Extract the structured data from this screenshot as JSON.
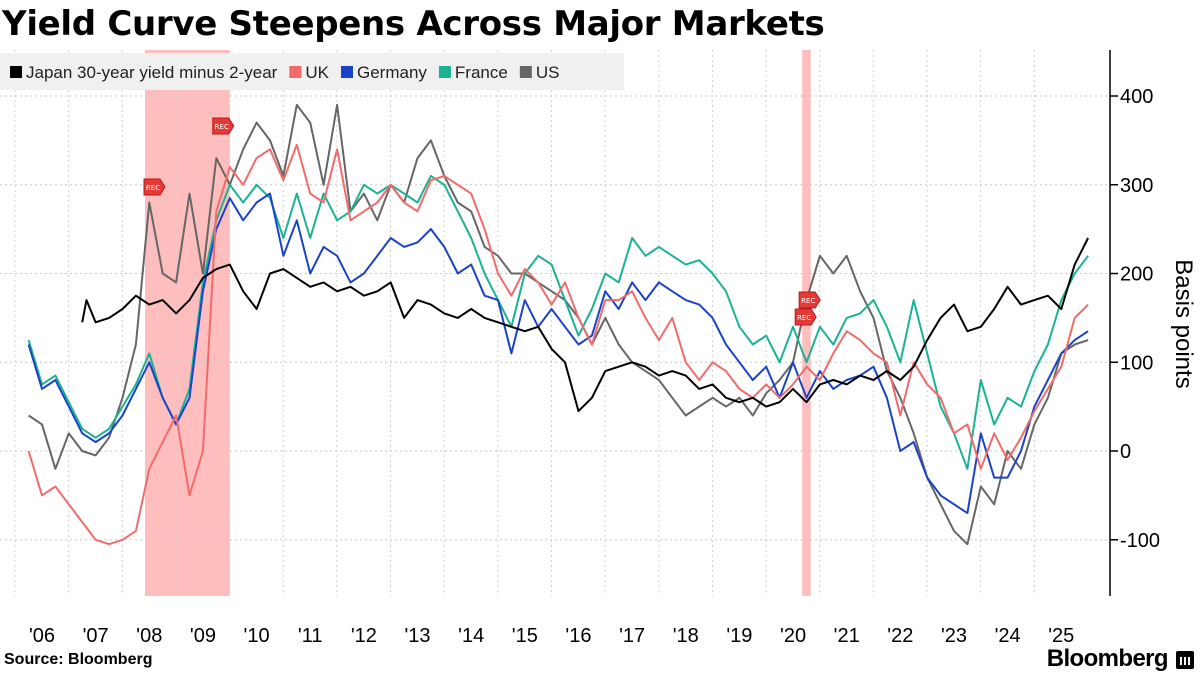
{
  "chart_data": {
    "type": "line",
    "title": "Yield Curve Steepens Across Major Markets",
    "ylabel": "Basis points",
    "ylim": [
      -160,
      450
    ],
    "yticks": [
      400,
      300,
      200,
      100,
      0,
      -100
    ],
    "x_tick_labels": [
      "'06",
      "'07",
      "'08",
      "'09",
      "'10",
      "'11",
      "'12",
      "'13",
      "'14",
      "'15",
      "'16",
      "'17",
      "'18",
      "'19",
      "'20",
      "'21",
      "'22",
      "'23",
      "'24",
      "'25"
    ],
    "grid": true,
    "legend_position": "top-left",
    "recessions": [
      {
        "label": "REC",
        "start": 2007.92,
        "end": 2009.5
      },
      {
        "label": "REC",
        "start": 2020.17,
        "end": 2020.33
      }
    ],
    "series": [
      {
        "name": "Japan 30-year yield minus 2-year",
        "color": "#000000",
        "x": [
          2006.75,
          2006.83,
          2007.0,
          2007.25,
          2007.5,
          2007.75,
          2008.0,
          2008.25,
          2008.5,
          2008.75,
          2009.0,
          2009.25,
          2009.5,
          2009.75,
          2010.0,
          2010.25,
          2010.5,
          2010.75,
          2011.0,
          2011.25,
          2011.5,
          2011.75,
          2012.0,
          2012.25,
          2012.5,
          2012.75,
          2013.0,
          2013.25,
          2013.5,
          2013.75,
          2014.0,
          2014.25,
          2014.5,
          2014.75,
          2015.0,
          2015.25,
          2015.5,
          2015.75,
          2016.0,
          2016.25,
          2016.5,
          2016.75,
          2017.0,
          2017.25,
          2017.5,
          2017.75,
          2018.0,
          2018.25,
          2018.5,
          2018.75,
          2019.0,
          2019.25,
          2019.5,
          2019.75,
          2020.0,
          2020.25,
          2020.5,
          2020.75,
          2021.0,
          2021.25,
          2021.5,
          2021.75,
          2022.0,
          2022.25,
          2022.5,
          2022.75,
          2023.0,
          2023.25,
          2023.5,
          2023.75,
          2024.0,
          2024.25,
          2024.5,
          2024.75,
          2025.0,
          2025.25,
          2025.5
        ],
        "values": [
          145,
          170,
          145,
          150,
          160,
          175,
          165,
          170,
          155,
          170,
          195,
          205,
          210,
          180,
          160,
          200,
          205,
          195,
          185,
          190,
          180,
          185,
          175,
          180,
          190,
          150,
          170,
          165,
          155,
          150,
          160,
          150,
          145,
          140,
          135,
          140,
          115,
          100,
          45,
          60,
          90,
          95,
          100,
          95,
          85,
          90,
          85,
          70,
          75,
          60,
          55,
          60,
          50,
          55,
          70,
          55,
          75,
          80,
          75,
          85,
          80,
          90,
          80,
          95,
          125,
          150,
          165,
          135,
          140,
          160,
          185,
          165,
          170,
          175,
          160,
          210,
          240
        ]
      },
      {
        "name": "UK",
        "color": "#f26b6b",
        "x": [
          2005.75,
          2006.0,
          2006.25,
          2006.5,
          2006.75,
          2007.0,
          2007.25,
          2007.5,
          2007.75,
          2008.0,
          2008.25,
          2008.5,
          2008.75,
          2009.0,
          2009.25,
          2009.5,
          2009.75,
          2010.0,
          2010.25,
          2010.5,
          2010.75,
          2011.0,
          2011.25,
          2011.5,
          2011.75,
          2012.0,
          2012.25,
          2012.5,
          2012.75,
          2013.0,
          2013.25,
          2013.5,
          2013.75,
          2014.0,
          2014.25,
          2014.5,
          2014.75,
          2015.0,
          2015.25,
          2015.5,
          2015.75,
          2016.0,
          2016.25,
          2016.5,
          2016.75,
          2017.0,
          2017.25,
          2017.5,
          2017.75,
          2018.0,
          2018.25,
          2018.5,
          2018.75,
          2019.0,
          2019.25,
          2019.5,
          2019.75,
          2020.0,
          2020.25,
          2020.5,
          2020.75,
          2021.0,
          2021.25,
          2021.5,
          2021.75,
          2022.0,
          2022.25,
          2022.5,
          2022.75,
          2023.0,
          2023.25,
          2023.5,
          2023.75,
          2024.0,
          2024.25,
          2024.5,
          2024.75,
          2025.0,
          2025.25,
          2025.5
        ],
        "values": [
          0,
          -50,
          -40,
          -60,
          -80,
          -100,
          -105,
          -100,
          -90,
          -20,
          10,
          40,
          -50,
          0,
          270,
          320,
          300,
          330,
          340,
          305,
          345,
          290,
          280,
          340,
          260,
          270,
          280,
          300,
          280,
          270,
          305,
          310,
          300,
          290,
          250,
          200,
          175,
          205,
          190,
          165,
          190,
          150,
          120,
          170,
          170,
          180,
          150,
          125,
          150,
          100,
          80,
          100,
          90,
          70,
          60,
          75,
          60,
          75,
          95,
          80,
          110,
          135,
          125,
          110,
          100,
          40,
          100,
          75,
          60,
          20,
          30,
          -20,
          20,
          -10,
          15,
          45,
          70,
          95,
          150,
          165
        ]
      },
      {
        "name": "Germany",
        "color": "#1a43c8",
        "x": [
          2005.75,
          2006.0,
          2006.25,
          2006.5,
          2006.75,
          2007.0,
          2007.25,
          2007.5,
          2007.75,
          2008.0,
          2008.25,
          2008.5,
          2008.75,
          2009.0,
          2009.25,
          2009.5,
          2009.75,
          2010.0,
          2010.25,
          2010.5,
          2010.75,
          2011.0,
          2011.25,
          2011.5,
          2011.75,
          2012.0,
          2012.25,
          2012.5,
          2012.75,
          2013.0,
          2013.25,
          2013.5,
          2013.75,
          2014.0,
          2014.25,
          2014.5,
          2014.75,
          2015.0,
          2015.25,
          2015.5,
          2015.75,
          2016.0,
          2016.25,
          2016.5,
          2016.75,
          2017.0,
          2017.25,
          2017.5,
          2017.75,
          2018.0,
          2018.25,
          2018.5,
          2018.75,
          2019.0,
          2019.25,
          2019.5,
          2019.75,
          2020.0,
          2020.25,
          2020.5,
          2020.75,
          2021.0,
          2021.25,
          2021.5,
          2021.75,
          2022.0,
          2022.25,
          2022.5,
          2022.75,
          2023.0,
          2023.25,
          2023.5,
          2023.75,
          2024.0,
          2024.25,
          2024.5,
          2024.75,
          2025.0,
          2025.25,
          2025.5
        ],
        "values": [
          120,
          70,
          80,
          50,
          20,
          10,
          20,
          40,
          70,
          100,
          60,
          30,
          60,
          180,
          250,
          285,
          260,
          280,
          290,
          220,
          260,
          200,
          230,
          220,
          190,
          200,
          220,
          240,
          230,
          235,
          250,
          230,
          200,
          210,
          175,
          170,
          110,
          170,
          140,
          160,
          140,
          120,
          130,
          180,
          160,
          190,
          170,
          190,
          180,
          170,
          165,
          150,
          120,
          100,
          80,
          95,
          60,
          100,
          60,
          90,
          70,
          80,
          85,
          95,
          60,
          0,
          10,
          -30,
          -50,
          -60,
          -70,
          20,
          -30,
          -30,
          0,
          50,
          80,
          110,
          125,
          135
        ]
      },
      {
        "name": "France",
        "color": "#19b394",
        "x": [
          2005.75,
          2006.0,
          2006.25,
          2006.5,
          2006.75,
          2007.0,
          2007.25,
          2007.5,
          2007.75,
          2008.0,
          2008.25,
          2008.5,
          2008.75,
          2009.0,
          2009.25,
          2009.5,
          2009.75,
          2010.0,
          2010.25,
          2010.5,
          2010.75,
          2011.0,
          2011.25,
          2011.5,
          2011.75,
          2012.0,
          2012.25,
          2012.5,
          2012.75,
          2013.0,
          2013.25,
          2013.5,
          2013.75,
          2014.0,
          2014.25,
          2014.5,
          2014.75,
          2015.0,
          2015.25,
          2015.5,
          2015.75,
          2016.0,
          2016.25,
          2016.5,
          2016.75,
          2017.0,
          2017.25,
          2017.5,
          2017.75,
          2018.0,
          2018.25,
          2018.5,
          2018.75,
          2019.0,
          2019.25,
          2019.5,
          2019.75,
          2020.0,
          2020.25,
          2020.5,
          2020.75,
          2021.0,
          2021.25,
          2021.5,
          2021.75,
          2022.0,
          2022.25,
          2022.5,
          2022.75,
          2023.0,
          2023.25,
          2023.5,
          2023.75,
          2024.0,
          2024.25,
          2024.5,
          2024.75,
          2025.0,
          2025.25,
          2025.5
        ],
        "values": [
          125,
          75,
          85,
          55,
          25,
          15,
          25,
          50,
          75,
          110,
          60,
          30,
          70,
          190,
          260,
          300,
          280,
          300,
          285,
          240,
          290,
          240,
          290,
          260,
          270,
          300,
          290,
          300,
          290,
          280,
          310,
          300,
          270,
          240,
          200,
          170,
          140,
          200,
          220,
          210,
          170,
          130,
          160,
          200,
          190,
          240,
          220,
          230,
          220,
          210,
          215,
          200,
          180,
          140,
          120,
          130,
          100,
          140,
          100,
          140,
          120,
          150,
          155,
          170,
          140,
          100,
          170,
          110,
          50,
          20,
          -20,
          80,
          30,
          60,
          50,
          90,
          120,
          170,
          200,
          220
        ]
      },
      {
        "name": "US",
        "color": "#666666",
        "x": [
          2005.75,
          2006.0,
          2006.25,
          2006.5,
          2006.75,
          2007.0,
          2007.25,
          2007.5,
          2007.75,
          2008.0,
          2008.25,
          2008.5,
          2008.75,
          2009.0,
          2009.25,
          2009.5,
          2009.75,
          2010.0,
          2010.25,
          2010.5,
          2010.75,
          2011.0,
          2011.25,
          2011.5,
          2011.75,
          2012.0,
          2012.25,
          2012.5,
          2012.75,
          2013.0,
          2013.25,
          2013.5,
          2013.75,
          2014.0,
          2014.25,
          2014.5,
          2014.75,
          2015.0,
          2015.25,
          2015.5,
          2015.75,
          2016.0,
          2016.25,
          2016.5,
          2016.75,
          2017.0,
          2017.25,
          2017.5,
          2017.75,
          2018.0,
          2018.25,
          2018.5,
          2018.75,
          2019.0,
          2019.25,
          2019.5,
          2019.75,
          2020.0,
          2020.25,
          2020.5,
          2020.75,
          2021.0,
          2021.25,
          2021.5,
          2021.75,
          2022.0,
          2022.25,
          2022.5,
          2022.75,
          2023.0,
          2023.25,
          2023.5,
          2023.75,
          2024.0,
          2024.25,
          2024.5,
          2024.75,
          2025.0,
          2025.25,
          2025.5
        ],
        "values": [
          40,
          30,
          -20,
          20,
          0,
          -5,
          15,
          60,
          120,
          280,
          200,
          190,
          290,
          200,
          330,
          300,
          340,
          370,
          350,
          310,
          390,
          370,
          300,
          390,
          270,
          290,
          260,
          300,
          280,
          330,
          350,
          310,
          280,
          270,
          230,
          220,
          200,
          200,
          190,
          180,
          170,
          150,
          120,
          150,
          120,
          100,
          90,
          80,
          60,
          40,
          50,
          60,
          50,
          60,
          40,
          65,
          80,
          100,
          170,
          220,
          200,
          220,
          180,
          150,
          90,
          60,
          20,
          -30,
          -60,
          -90,
          -105,
          -40,
          -60,
          0,
          -20,
          30,
          60,
          110,
          120,
          125
        ]
      }
    ]
  }
}
